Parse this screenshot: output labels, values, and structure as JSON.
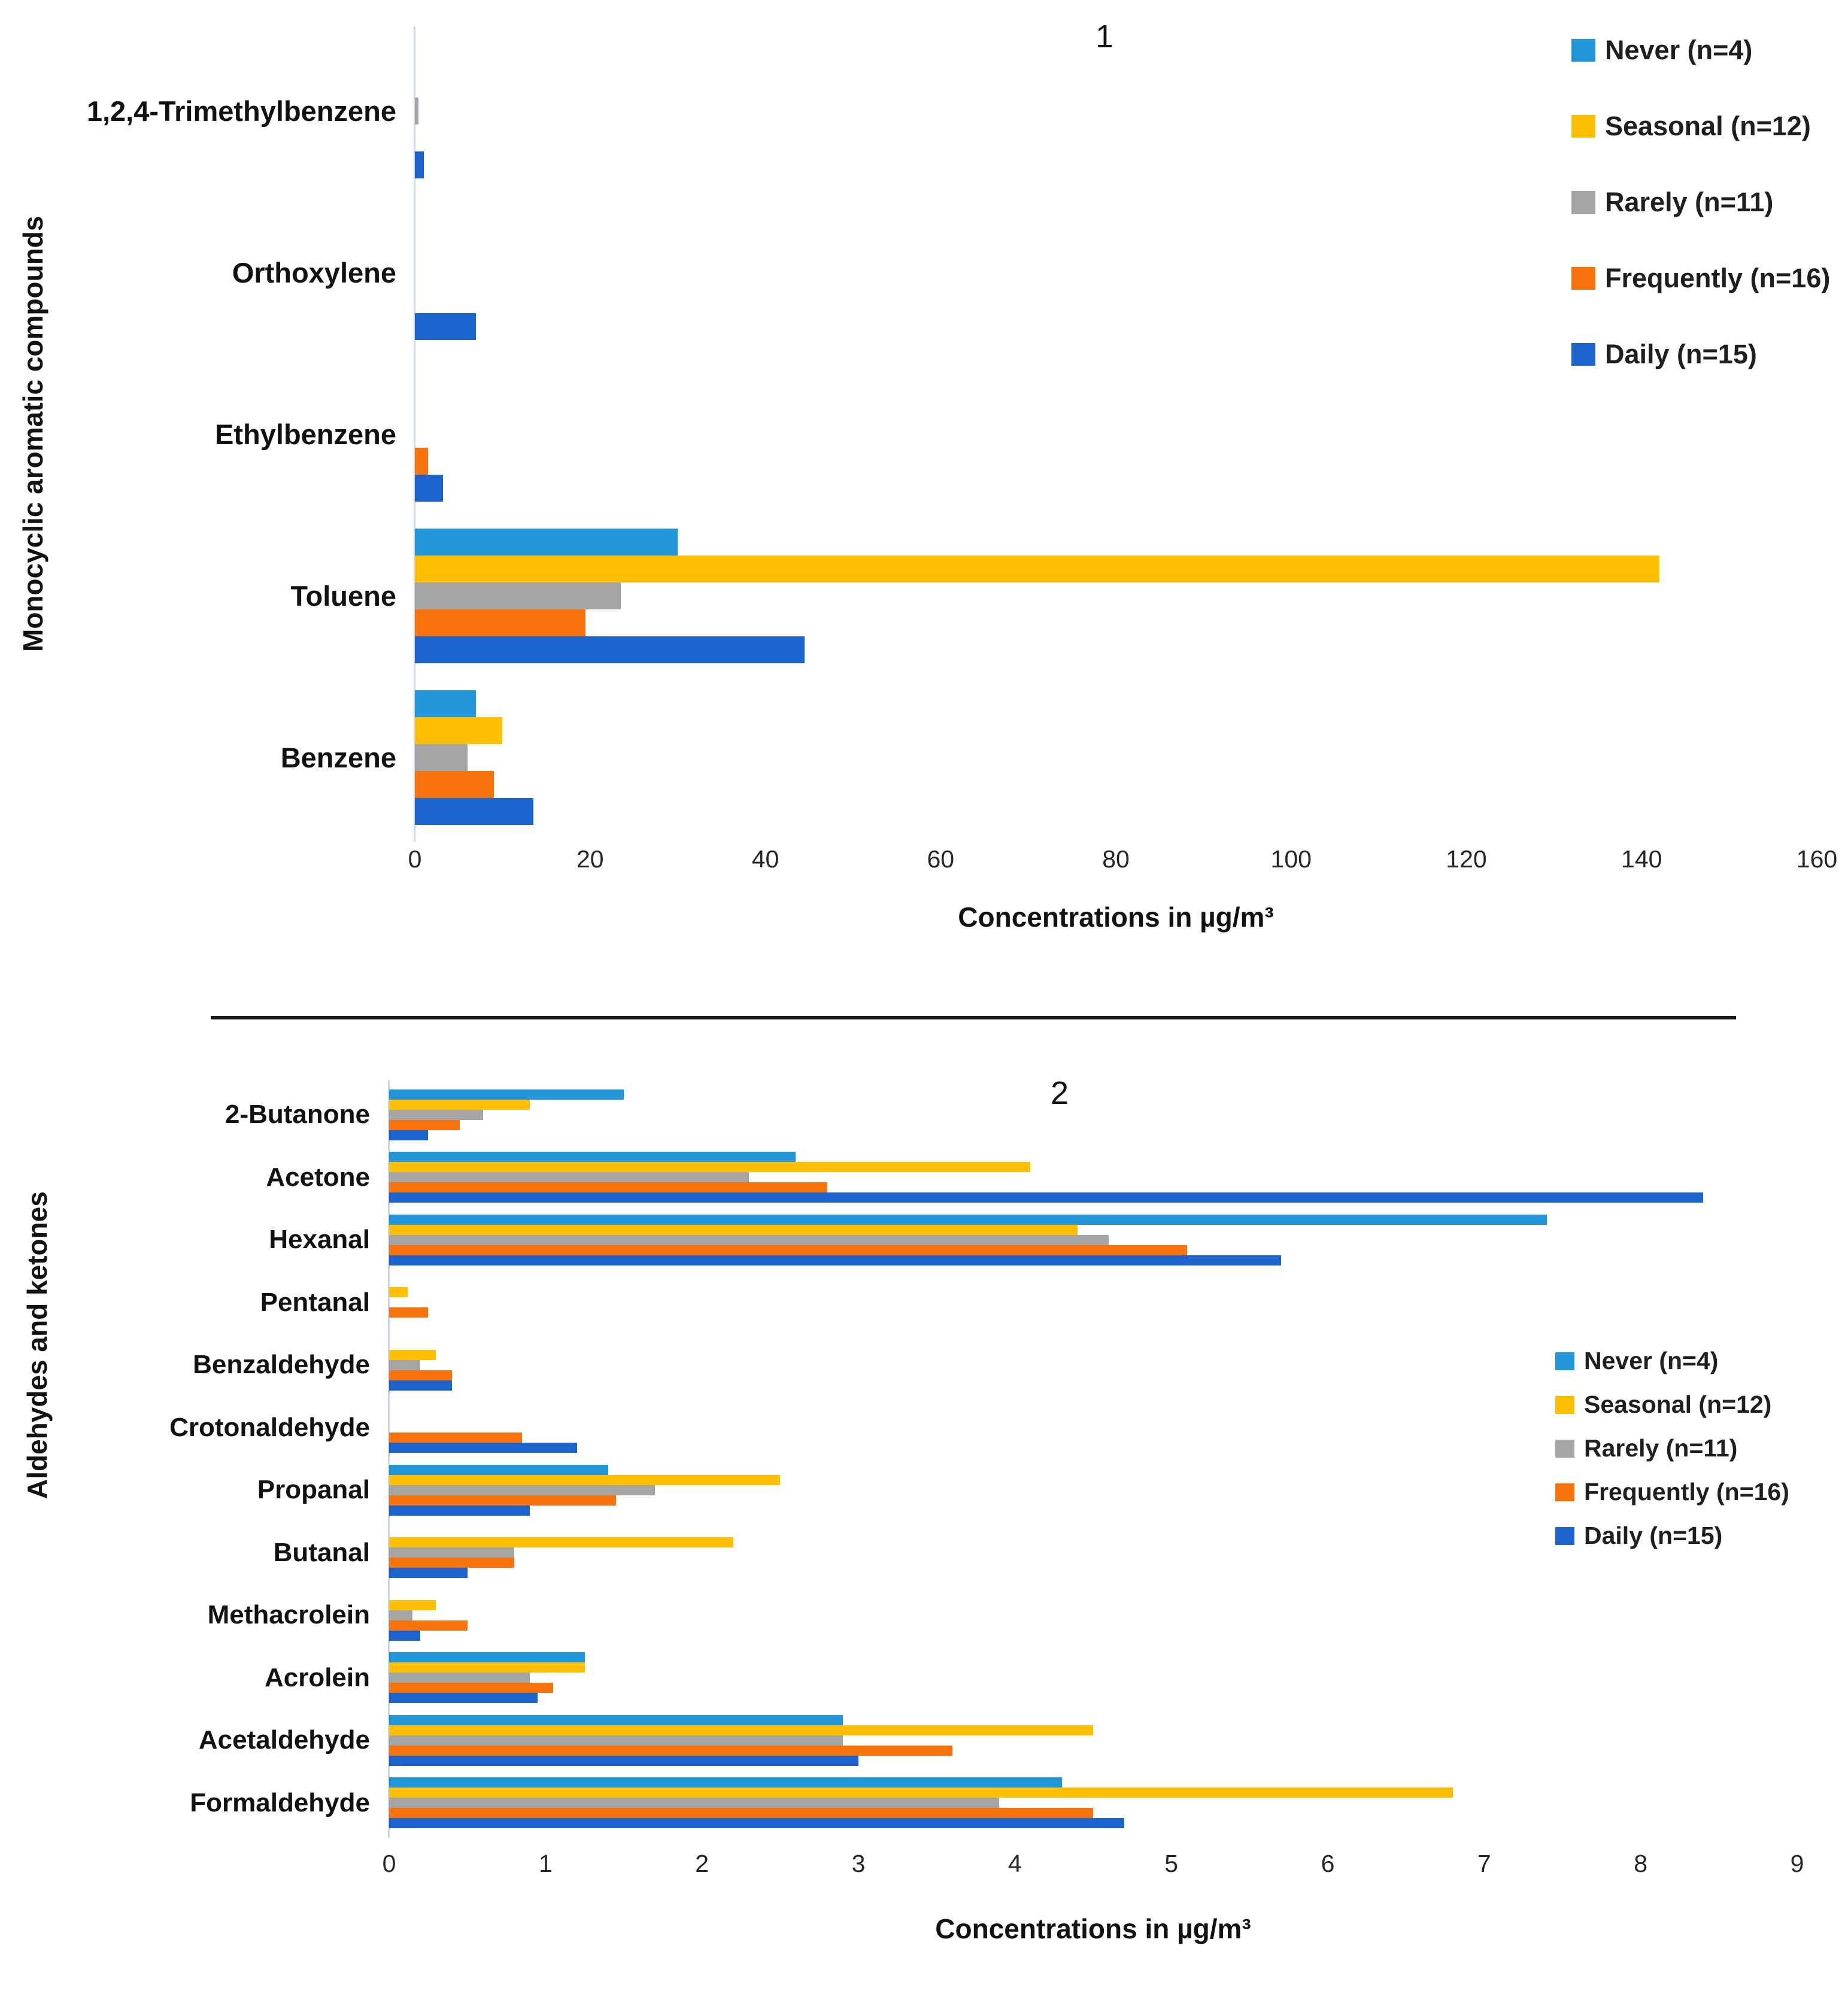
{
  "figure": {
    "panel1_label": "1",
    "panel2_label": "2"
  },
  "legend": {
    "entries": [
      {
        "label": "Never (n=4)",
        "color": "#2196D9"
      },
      {
        "label": "Seasonal (n=12)",
        "color": "#FFC003"
      },
      {
        "label": "Rarely (n=11)",
        "color": "#A5A5A5"
      },
      {
        "label": "Frequently (n=16)",
        "color": "#F8730B"
      },
      {
        "label": "Daily (n=15)",
        "color": "#1D63CE"
      }
    ]
  },
  "chart_data": [
    {
      "type": "bar",
      "orientation": "horizontal",
      "title": "1",
      "ylabel": "Monocyclic aromatic compounds",
      "xlabel": "Concentrations in µg/m³",
      "xlim": [
        0,
        160
      ],
      "xticks": [
        0,
        20,
        40,
        60,
        80,
        100,
        120,
        140,
        160
      ],
      "grid": false,
      "legend_position": "top-right",
      "categories": [
        "1,2,4-Trimethylbenzene",
        "Orthoxylene",
        "Ethylbenzene",
        "Toluene",
        "Benzene"
      ],
      "series": [
        {
          "name": "Never (n=4)",
          "color": "#2196D9",
          "values": [
            0,
            0,
            0,
            30,
            7
          ]
        },
        {
          "name": "Seasonal (n=12)",
          "color": "#FFC003",
          "values": [
            0,
            0,
            0,
            142,
            10
          ]
        },
        {
          "name": "Rarely (n=11)",
          "color": "#A5A5A5",
          "values": [
            0.4,
            0,
            0,
            23.5,
            6
          ]
        },
        {
          "name": "Frequently (n=16)",
          "color": "#F8730B",
          "values": [
            0,
            0,
            1.5,
            19.5,
            9
          ]
        },
        {
          "name": "Daily (n=15)",
          "color": "#1D63CE",
          "values": [
            1,
            7,
            3.2,
            44.5,
            13.5
          ]
        }
      ]
    },
    {
      "type": "bar",
      "orientation": "horizontal",
      "title": "2",
      "ylabel": "Aldehydes and ketones",
      "xlabel": "Concentrations in µg/m³",
      "xlim": [
        0,
        9
      ],
      "xticks": [
        0,
        1,
        2,
        3,
        4,
        5,
        6,
        7,
        8,
        9
      ],
      "grid": false,
      "legend_position": "middle-right",
      "categories": [
        "2-Butanone",
        "Acetone",
        "Hexanal",
        "Pentanal",
        "Benzaldehyde",
        "Crotonaldehyde",
        "Propanal",
        "Butanal",
        "Methacrolein",
        "Acrolein",
        "Acetaldehyde",
        "Formaldehyde"
      ],
      "series": [
        {
          "name": "Never (n=4)",
          "color": "#2196D9",
          "values": [
            1.5,
            2.6,
            7.4,
            0,
            0,
            0,
            1.4,
            0,
            0,
            1.25,
            2.9,
            4.3
          ]
        },
        {
          "name": "Seasonal (n=12)",
          "color": "#FFC003",
          "values": [
            0.9,
            4.1,
            4.4,
            0.12,
            0.3,
            0,
            2.5,
            2.2,
            0.3,
            1.25,
            4.5,
            6.8
          ]
        },
        {
          "name": "Rarely (n=11)",
          "color": "#A5A5A5",
          "values": [
            0.6,
            2.3,
            4.6,
            0,
            0.2,
            0,
            1.7,
            0.8,
            0.15,
            0.9,
            2.9,
            3.9
          ]
        },
        {
          "name": "Frequently (n=16)",
          "color": "#F8730B",
          "values": [
            0.45,
            2.8,
            5.1,
            0.25,
            0.4,
            0.85,
            1.45,
            0.8,
            0.5,
            1.05,
            3.6,
            4.5
          ]
        },
        {
          "name": "Daily (n=15)",
          "color": "#1D63CE",
          "values": [
            0.25,
            8.4,
            5.7,
            0,
            0.4,
            1.2,
            0.9,
            0.5,
            0.2,
            0.95,
            3.0,
            4.7
          ]
        }
      ]
    }
  ]
}
